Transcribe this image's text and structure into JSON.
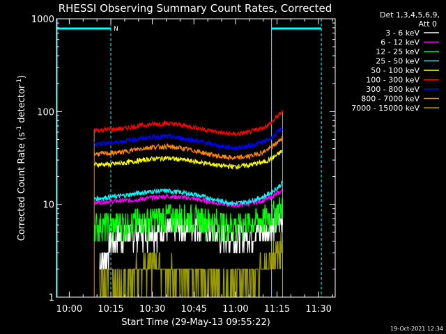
{
  "chart_data": {
    "type": "line",
    "title": "RHESSI Observing Summary Count Rates, Corrected",
    "xlabel": "Start Time (29-May-13 09:55:22)",
    "ylabel_main": "Corrected Count Rate (s",
    "ylabel_sup1": "-1",
    "ylabel_mid": " detector",
    "ylabel_sup2": "-1",
    "ylabel_end": ")",
    "y_scale": "log",
    "ylim": [
      1,
      1000
    ],
    "xlim": [
      "09:55:22",
      "11:36:00"
    ],
    "x_ticks": [
      "10:00",
      "10:15",
      "10:30",
      "10:45",
      "11:00",
      "11:15",
      "11:30"
    ],
    "y_ticks": [
      "1",
      "10",
      "100",
      "1000"
    ],
    "legend_header": [
      "Det 1,3,4,5,6,9,",
      "Att 0"
    ],
    "legend_placement": "top-right, outside plot",
    "timestamp": "19-Oct-2021 12:34",
    "annotations": [
      {
        "text": "N",
        "at": "10:15"
      }
    ],
    "night_intervals": [
      {
        "start": "09:55:22",
        "end": "10:15"
      },
      {
        "start": "11:13",
        "end": "11:31"
      }
    ],
    "data_interval": {
      "start": "10:09",
      "end": "11:17"
    },
    "series": [
      {
        "name": "3 - 6 keV",
        "color": "#ffffff",
        "x": [
          "10:11",
          "10:13",
          "10:15",
          "10:20",
          "10:25",
          "10:30",
          "10:35",
          "10:40",
          "10:45",
          "10:50",
          "10:55",
          "11:00",
          "11:05",
          "11:10",
          "11:13",
          "11:15",
          "11:17"
        ],
        "values": [
          2.5,
          2.7,
          4.2,
          4.6,
          5.0,
          5.4,
          5.2,
          5.8,
          6.0,
          5.4,
          4.6,
          4.4,
          4.8,
          5.2,
          5.6,
          6.2,
          6.8
        ]
      },
      {
        "name": "6 - 12 keV",
        "color": "#ff00ff",
        "x": [
          "10:09",
          "10:15",
          "10:20",
          "10:25",
          "10:30",
          "10:35",
          "10:40",
          "10:45",
          "10:50",
          "10:55",
          "11:00",
          "11:05",
          "11:10",
          "11:13",
          "11:15",
          "11:17"
        ],
        "values": [
          10.5,
          10.8,
          11.0,
          11.3,
          11.8,
          12.2,
          12.0,
          11.5,
          10.8,
          10.2,
          9.8,
          10.2,
          11.0,
          12.0,
          13.0,
          14.0
        ]
      },
      {
        "name": "12 - 25 keV",
        "color": "#00ff00",
        "x": [
          "10:09",
          "10:15",
          "10:20",
          "10:25",
          "10:30",
          "10:35",
          "10:40",
          "10:45",
          "10:50",
          "10:55",
          "11:00",
          "11:05",
          "11:10",
          "11:13",
          "11:15",
          "11:17"
        ],
        "values": [
          6.0,
          6.0,
          6.2,
          6.5,
          7.0,
          7.4,
          7.6,
          7.2,
          6.8,
          6.3,
          6.0,
          6.3,
          7.0,
          7.8,
          8.6,
          9.8
        ]
      },
      {
        "name": "25 - 50 keV",
        "color": "#00ffff",
        "x": [
          "10:09",
          "10:15",
          "10:20",
          "10:25",
          "10:30",
          "10:35",
          "10:40",
          "10:45",
          "10:50",
          "10:55",
          "11:00",
          "11:05",
          "11:10",
          "11:13",
          "11:15",
          "11:17"
        ],
        "values": [
          11.5,
          12.0,
          12.5,
          13.2,
          13.8,
          14.0,
          13.5,
          12.8,
          11.8,
          10.8,
          10.2,
          10.8,
          12.0,
          13.5,
          15.0,
          17.0
        ]
      },
      {
        "name": "50 - 100 keV",
        "color": "#ffff00",
        "x": [
          "10:09",
          "10:15",
          "10:20",
          "10:25",
          "10:30",
          "10:35",
          "10:40",
          "10:45",
          "10:50",
          "10:55",
          "11:00",
          "11:05",
          "11:10",
          "11:13",
          "11:15",
          "11:17"
        ],
        "values": [
          27,
          27,
          28,
          29.5,
          31,
          31.5,
          30.5,
          29,
          27.5,
          26,
          25.5,
          26.5,
          28.5,
          31,
          34,
          38
        ]
      },
      {
        "name": "100 - 300 keV",
        "color": "#ff0000",
        "x": [
          "10:09",
          "10:15",
          "10:20",
          "10:25",
          "10:30",
          "10:35",
          "10:40",
          "10:45",
          "10:50",
          "10:55",
          "11:00",
          "11:05",
          "11:10",
          "11:13",
          "11:15",
          "11:17"
        ],
        "values": [
          63,
          64,
          66,
          70,
          73,
          75,
          72,
          68,
          63,
          59,
          57,
          60,
          67,
          76,
          88,
          100
        ]
      },
      {
        "name": "300 - 800 keV",
        "color": "#0000ff",
        "x": [
          "10:09",
          "10:15",
          "10:20",
          "10:25",
          "10:30",
          "10:35",
          "10:40",
          "10:45",
          "10:50",
          "10:55",
          "11:00",
          "11:05",
          "11:10",
          "11:13",
          "11:15",
          "11:17"
        ],
        "values": [
          45,
          46,
          48,
          51,
          53,
          54,
          52,
          49,
          45.5,
          42,
          40.5,
          42.5,
          47,
          52,
          59,
          67
        ]
      },
      {
        "name": "800 - 7000 keV",
        "color": "#ff8800",
        "x": [
          "10:09",
          "10:15",
          "10:20",
          "10:25",
          "10:30",
          "10:35",
          "10:40",
          "10:45",
          "10:50",
          "10:55",
          "11:00",
          "11:05",
          "11:10",
          "11:13",
          "11:15",
          "11:17"
        ],
        "values": [
          35,
          35.5,
          37,
          39.5,
          41.5,
          42,
          40.5,
          38,
          35,
          32.5,
          31.5,
          33,
          36.5,
          41,
          46,
          53
        ]
      },
      {
        "name": "7000 - 15000 keV",
        "color": "#999900",
        "x": [
          "10:11",
          "10:13",
          "10:15",
          "10:20",
          "10:25",
          "10:30",
          "10:35",
          "10:40",
          "10:45",
          "10:50",
          "10:55",
          "11:00",
          "11:05",
          "11:10",
          "11:13",
          "11:15",
          "11:17"
        ],
        "values": [
          1.4,
          1.6,
          1.8,
          1.6,
          2.0,
          2.2,
          2.0,
          1.8,
          1.6,
          1.5,
          1.4,
          1.5,
          1.6,
          2.0,
          2.6,
          3.2,
          4.0
        ]
      }
    ]
  }
}
